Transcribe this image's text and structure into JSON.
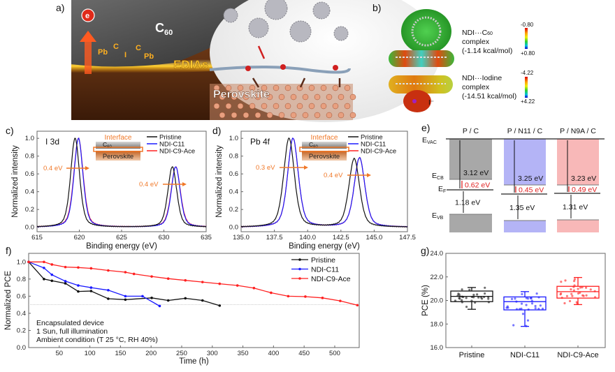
{
  "panels": {
    "a": {
      "label": "a)",
      "electron": "e",
      "c60": {
        "base": "C",
        "sub": "60"
      },
      "atoms": [
        "Pb",
        "C",
        "I",
        "C",
        "Pb"
      ],
      "edias": "EDIAs",
      "perovskite": "Perovskite"
    },
    "b": {
      "label": "b)",
      "complex1": {
        "line1_pre": "NDI···C",
        "line1_sub": "60",
        "line2": "complex",
        "line3": "(-1.14 kcal/mol)",
        "scale_top": "-0.80",
        "scale_bottom": "+0.80"
      },
      "complex2": {
        "line1": "NDI···Iodine",
        "line2": "complex",
        "line3": "(-14.51 kcal/mol)",
        "scale_top": "-4.22",
        "scale_bottom": "+4.22",
        "ion": "I⁻"
      }
    },
    "c": {
      "label": "c)",
      "element": "I 3d",
      "shift1": "0.4 eV",
      "shift2": "0.4 eV",
      "inset": {
        "title": "Interface",
        "c60_base": "C",
        "c60_sub": "60",
        "perovskite": "Perovskite"
      }
    },
    "d": {
      "label": "d)",
      "element": "Pb 4f",
      "shift1": "0.3 eV",
      "shift2": "0.4 eV",
      "inset": {
        "title": "Interface",
        "c60_base": "C",
        "c60_sub": "60",
        "perovskite": "Perovskite"
      }
    },
    "e": {
      "label": "e)",
      "levels": {
        "vac": {
          "base": "E",
          "sub": "VAC"
        },
        "cb": {
          "base": "E",
          "sub": "CB"
        },
        "f": {
          "base": "E",
          "sub": "F"
        },
        "vb": {
          "base": "E",
          "sub": "VB"
        }
      },
      "columns": [
        {
          "title": "P / C",
          "work_function": "3.12 eV",
          "ef_cb": "0.62 eV",
          "ef_vb": "1.18 eV",
          "color": "#a8a8a8"
        },
        {
          "title": "P / N11 / C",
          "work_function": "3.25 eV",
          "ef_cb": "0.45 eV",
          "ef_vb": "1.35 eV",
          "color": "#b4b4f6"
        },
        {
          "title": "P / N9A / C",
          "work_function": "3.23 eV",
          "ef_cb": "0.49 eV",
          "ef_vb": "1.31 eV",
          "color": "#f8b8b8"
        }
      ]
    },
    "f": {
      "label": "f)",
      "notes": [
        "Encapsulated device",
        "1 Sun, full illumination",
        "Ambient condition (T 25 °C, RH 40%)"
      ]
    },
    "g": {
      "label": "g)"
    }
  },
  "colors": {
    "pristine": "#111111",
    "ndi_c11": "#1a1aff",
    "ndi_c9_ace": "#ff2020",
    "annotation": "#f07828",
    "energy_red": "#e02020"
  },
  "chart_data": [
    {
      "id": "c",
      "type": "line",
      "xlabel": "Binding energy (eV)",
      "ylabel": "Normalized intensity",
      "xlim": [
        615,
        635
      ],
      "ylim": [
        -0.05,
        1.08
      ],
      "xticks": [
        "615",
        "620",
        "625",
        "630",
        "635"
      ],
      "yticks": [
        "0.0",
        "0.2",
        "0.4",
        "0.6",
        "0.8",
        "1.0"
      ],
      "legend_position": "top-right",
      "series": [
        {
          "name": "Pristine",
          "peaks": [
            [
              619.5,
              1.0
            ],
            [
              631.0,
              0.68
            ]
          ],
          "fwhm": 1.25
        },
        {
          "name": "NDI-C11",
          "peaks": [
            [
              619.9,
              1.0
            ],
            [
              631.4,
              0.68
            ]
          ],
          "fwhm": 1.25
        },
        {
          "name": "NDI-C9-Ace",
          "peaks": [
            [
              619.9,
              1.0
            ],
            [
              631.4,
              0.68
            ]
          ],
          "fwhm": 1.3
        }
      ]
    },
    {
      "id": "d",
      "type": "line",
      "xlabel": "Binding energy (eV)",
      "ylabel": "Normalized intensity",
      "xlim": [
        135,
        147.5
      ],
      "ylim": [
        -0.05,
        1.08
      ],
      "xticks": [
        "135.0",
        "137.5",
        "140.0",
        "142.5",
        "145.0",
        "147.5"
      ],
      "yticks": [
        "0.0",
        "0.2",
        "0.4",
        "0.6",
        "0.8",
        "1.0"
      ],
      "legend_position": "top-right",
      "series": [
        {
          "name": "Pristine",
          "peaks": [
            [
              138.6,
              1.0
            ],
            [
              143.5,
              0.77
            ]
          ],
          "fwhm": 0.95
        },
        {
          "name": "NDI-C11",
          "peaks": [
            [
              138.9,
              1.0
            ],
            [
              143.9,
              0.78
            ]
          ],
          "fwhm": 0.95
        },
        {
          "name": "NDI-C9-Ace",
          "peaks": [
            [
              138.9,
              1.0
            ],
            [
              143.9,
              0.78
            ]
          ],
          "fwhm": 0.95
        }
      ]
    },
    {
      "id": "f",
      "type": "line",
      "xlabel": "Time (h)",
      "ylabel": "Normalized PCE",
      "xlim": [
        0,
        540
      ],
      "ylim": [
        0,
        1.1
      ],
      "xticks": [
        "50",
        "100",
        "150",
        "200",
        "250",
        "300",
        "350",
        "400",
        "450",
        "500"
      ],
      "yticks": [
        "0.0",
        "0.2",
        "0.4",
        "0.6",
        "0.8",
        "1.0"
      ],
      "reference_line": 0.5,
      "legend_position": "top-right",
      "series": [
        {
          "name": "Pristine",
          "x": [
            0,
            25,
            38,
            60,
            81,
            102,
            130,
            158,
            201,
            228,
            256,
            284,
            312
          ],
          "y": [
            1.0,
            0.8,
            0.78,
            0.75,
            0.655,
            0.66,
            0.57,
            0.56,
            0.58,
            0.55,
            0.575,
            0.55,
            0.49
          ]
        },
        {
          "name": "NDI-C11",
          "x": [
            0,
            25,
            38,
            60,
            81,
            102,
            130,
            158,
            186,
            214
          ],
          "y": [
            1.0,
            0.93,
            0.85,
            0.775,
            0.725,
            0.7,
            0.67,
            0.6,
            0.6,
            0.485
          ]
        },
        {
          "name": "NDI-C9-Ace",
          "x": [
            0,
            25,
            38,
            60,
            81,
            102,
            130,
            158,
            172,
            201,
            228,
            256,
            284,
            312,
            341,
            368,
            396,
            424,
            452,
            480,
            509,
            537
          ],
          "y": [
            1.0,
            1.0,
            0.97,
            0.94,
            0.935,
            0.925,
            0.9,
            0.88,
            0.86,
            0.83,
            0.805,
            0.785,
            0.765,
            0.745,
            0.725,
            0.695,
            0.64,
            0.6,
            0.595,
            0.58,
            0.545,
            0.495
          ]
        }
      ]
    },
    {
      "id": "g",
      "type": "box",
      "ylabel": "PCE (%)",
      "ylim": [
        16,
        24
      ],
      "yticks": [
        "16.0",
        "18.0",
        "20.0",
        "22.0",
        "24.0"
      ],
      "categories": [
        "Pristine",
        "NDI-C11",
        "NDI-C9-Ace"
      ],
      "boxes": [
        {
          "min": 19.25,
          "q1": 19.9,
          "median": 20.35,
          "q3": 20.8,
          "max": 21.1
        },
        {
          "min": 17.8,
          "q1": 19.2,
          "median": 19.9,
          "q3": 20.3,
          "max": 20.75
        },
        {
          "min": 19.65,
          "q1": 20.2,
          "median": 20.75,
          "q3": 21.2,
          "max": 21.95
        }
      ]
    }
  ]
}
